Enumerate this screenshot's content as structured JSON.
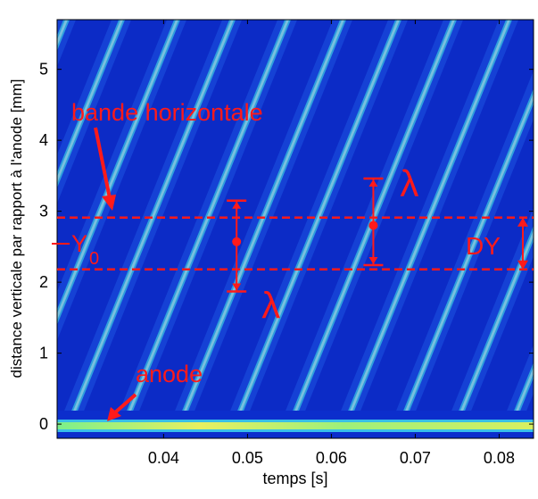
{
  "chart_data": {
    "type": "annotated-image",
    "xlabel": "temps [s]",
    "ylabel": "distance verticale par rapport à l'anode [mm]",
    "xlim": [
      0.0273,
      0.0841
    ],
    "xticks": [
      0.04,
      0.05,
      0.06,
      0.07,
      0.08
    ],
    "ylim": [
      -0.2,
      5.7
    ],
    "yticks": [
      0,
      1,
      2,
      3,
      4,
      5
    ],
    "band_lines": [
      2.91,
      2.18
    ],
    "color": "#ff1a1a",
    "lambda_markers": [
      {
        "label": "λ",
        "x": 0.0487,
        "center": 2.57,
        "low": 1.87,
        "high": 3.15
      },
      {
        "label": "λ",
        "x": 0.065,
        "center": 2.8,
        "low": 2.24,
        "high": 3.46
      }
    ],
    "band_label": "bande horizontale",
    "anode_label": "anode",
    "y0_label": "Y",
    "y0_subscript": "0",
    "dy_label": "DY"
  }
}
